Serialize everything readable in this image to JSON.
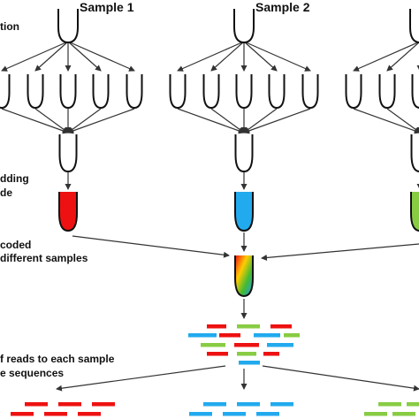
{
  "samples": [
    {
      "label": "Sample 1"
    },
    {
      "label": "Sample 2"
    }
  ],
  "steps": {
    "step1_fragment": "tion",
    "step2_line1": "dding",
    "step2_line2": "de",
    "step3_line1": "coded",
    "step3_line2": "different samples",
    "step4_line1": "f reads to each sample",
    "step4_line2": "e sequences"
  },
  "colors": {
    "sample1_barcode": "#ee1111",
    "sample2_barcode": "#22aaee",
    "sample3_barcode": "#88cc44",
    "outline": "#111111",
    "arrow": "#333333"
  }
}
